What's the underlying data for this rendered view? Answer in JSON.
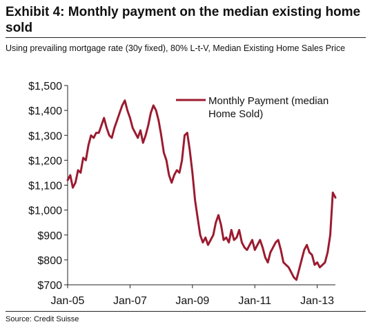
{
  "header": {
    "title": "Exhibit 4: Monthly payment on the median existing home sold",
    "subtitle": "Using prevailing mortgage rate (30y fixed), 80% L-t-V, Median Existing Home Sales Price"
  },
  "footer": {
    "source": "Source: Credit Suisse"
  },
  "chart_data": {
    "type": "line",
    "title": "",
    "xlabel": "",
    "ylabel": "",
    "x_ticks": [
      "Jan-05",
      "Jan-07",
      "Jan-09",
      "Jan-11",
      "Jan-13"
    ],
    "y_ticks": [
      "$700",
      "$800",
      "$900",
      "$1,000",
      "$1,100",
      "$1,200",
      "$1,300",
      "$1,400",
      "$1,500"
    ],
    "ylim": [
      700,
      1500
    ],
    "xlim": [
      "2005-01",
      "2013-08"
    ],
    "grid": false,
    "legend": {
      "position": "top-right",
      "entries": [
        "Monthly Payment (median",
        "Home Sold)"
      ]
    },
    "colors": {
      "series": "#9b1b30"
    },
    "series": [
      {
        "name": "Monthly Payment (median Home Sold)",
        "points": [
          [
            "2005-01",
            1120
          ],
          [
            "2005-02",
            1140
          ],
          [
            "2005-03",
            1090
          ],
          [
            "2005-04",
            1110
          ],
          [
            "2005-05",
            1160
          ],
          [
            "2005-06",
            1150
          ],
          [
            "2005-07",
            1210
          ],
          [
            "2005-08",
            1200
          ],
          [
            "2005-09",
            1260
          ],
          [
            "2005-10",
            1300
          ],
          [
            "2005-11",
            1290
          ],
          [
            "2005-12",
            1310
          ],
          [
            "2006-01",
            1310
          ],
          [
            "2006-02",
            1340
          ],
          [
            "2006-03",
            1370
          ],
          [
            "2006-04",
            1330
          ],
          [
            "2006-05",
            1300
          ],
          [
            "2006-06",
            1290
          ],
          [
            "2006-07",
            1330
          ],
          [
            "2006-08",
            1360
          ],
          [
            "2006-09",
            1390
          ],
          [
            "2006-10",
            1420
          ],
          [
            "2006-11",
            1440
          ],
          [
            "2006-12",
            1400
          ],
          [
            "2007-01",
            1370
          ],
          [
            "2007-02",
            1330
          ],
          [
            "2007-03",
            1310
          ],
          [
            "2007-04",
            1290
          ],
          [
            "2007-05",
            1320
          ],
          [
            "2007-06",
            1270
          ],
          [
            "2007-07",
            1300
          ],
          [
            "2007-08",
            1340
          ],
          [
            "2007-09",
            1390
          ],
          [
            "2007-10",
            1420
          ],
          [
            "2007-11",
            1400
          ],
          [
            "2007-12",
            1360
          ],
          [
            "2008-01",
            1300
          ],
          [
            "2008-02",
            1230
          ],
          [
            "2008-03",
            1200
          ],
          [
            "2008-04",
            1140
          ],
          [
            "2008-05",
            1110
          ],
          [
            "2008-06",
            1140
          ],
          [
            "2008-07",
            1160
          ],
          [
            "2008-08",
            1150
          ],
          [
            "2008-09",
            1200
          ],
          [
            "2008-10",
            1300
          ],
          [
            "2008-11",
            1310
          ],
          [
            "2008-12",
            1240
          ],
          [
            "2009-01",
            1150
          ],
          [
            "2009-02",
            1040
          ],
          [
            "2009-03",
            970
          ],
          [
            "2009-04",
            900
          ],
          [
            "2009-05",
            870
          ],
          [
            "2009-06",
            890
          ],
          [
            "2009-07",
            860
          ],
          [
            "2009-08",
            880
          ],
          [
            "2009-09",
            900
          ],
          [
            "2009-10",
            950
          ],
          [
            "2009-11",
            980
          ],
          [
            "2009-12",
            940
          ],
          [
            "2010-01",
            880
          ],
          [
            "2010-02",
            890
          ],
          [
            "2010-03",
            870
          ],
          [
            "2010-04",
            920
          ],
          [
            "2010-05",
            880
          ],
          [
            "2010-06",
            890
          ],
          [
            "2010-07",
            920
          ],
          [
            "2010-08",
            870
          ],
          [
            "2010-09",
            850
          ],
          [
            "2010-10",
            840
          ],
          [
            "2010-11",
            860
          ],
          [
            "2010-12",
            880
          ],
          [
            "2011-01",
            840
          ],
          [
            "2011-02",
            860
          ],
          [
            "2011-03",
            880
          ],
          [
            "2011-04",
            850
          ],
          [
            "2011-05",
            810
          ],
          [
            "2011-06",
            790
          ],
          [
            "2011-07",
            830
          ],
          [
            "2011-08",
            850
          ],
          [
            "2011-09",
            870
          ],
          [
            "2011-10",
            880
          ],
          [
            "2011-11",
            840
          ],
          [
            "2011-12",
            790
          ],
          [
            "2012-01",
            780
          ],
          [
            "2012-02",
            770
          ],
          [
            "2012-03",
            750
          ],
          [
            "2012-04",
            730
          ],
          [
            "2012-05",
            720
          ],
          [
            "2012-06",
            760
          ],
          [
            "2012-07",
            800
          ],
          [
            "2012-08",
            840
          ],
          [
            "2012-09",
            860
          ],
          [
            "2012-10",
            830
          ],
          [
            "2012-11",
            820
          ],
          [
            "2012-12",
            780
          ],
          [
            "2013-01",
            790
          ],
          [
            "2013-02",
            770
          ],
          [
            "2013-03",
            780
          ],
          [
            "2013-04",
            790
          ],
          [
            "2013-05",
            830
          ],
          [
            "2013-06",
            900
          ],
          [
            "2013-07",
            1070
          ],
          [
            "2013-08",
            1050
          ]
        ]
      }
    ]
  }
}
